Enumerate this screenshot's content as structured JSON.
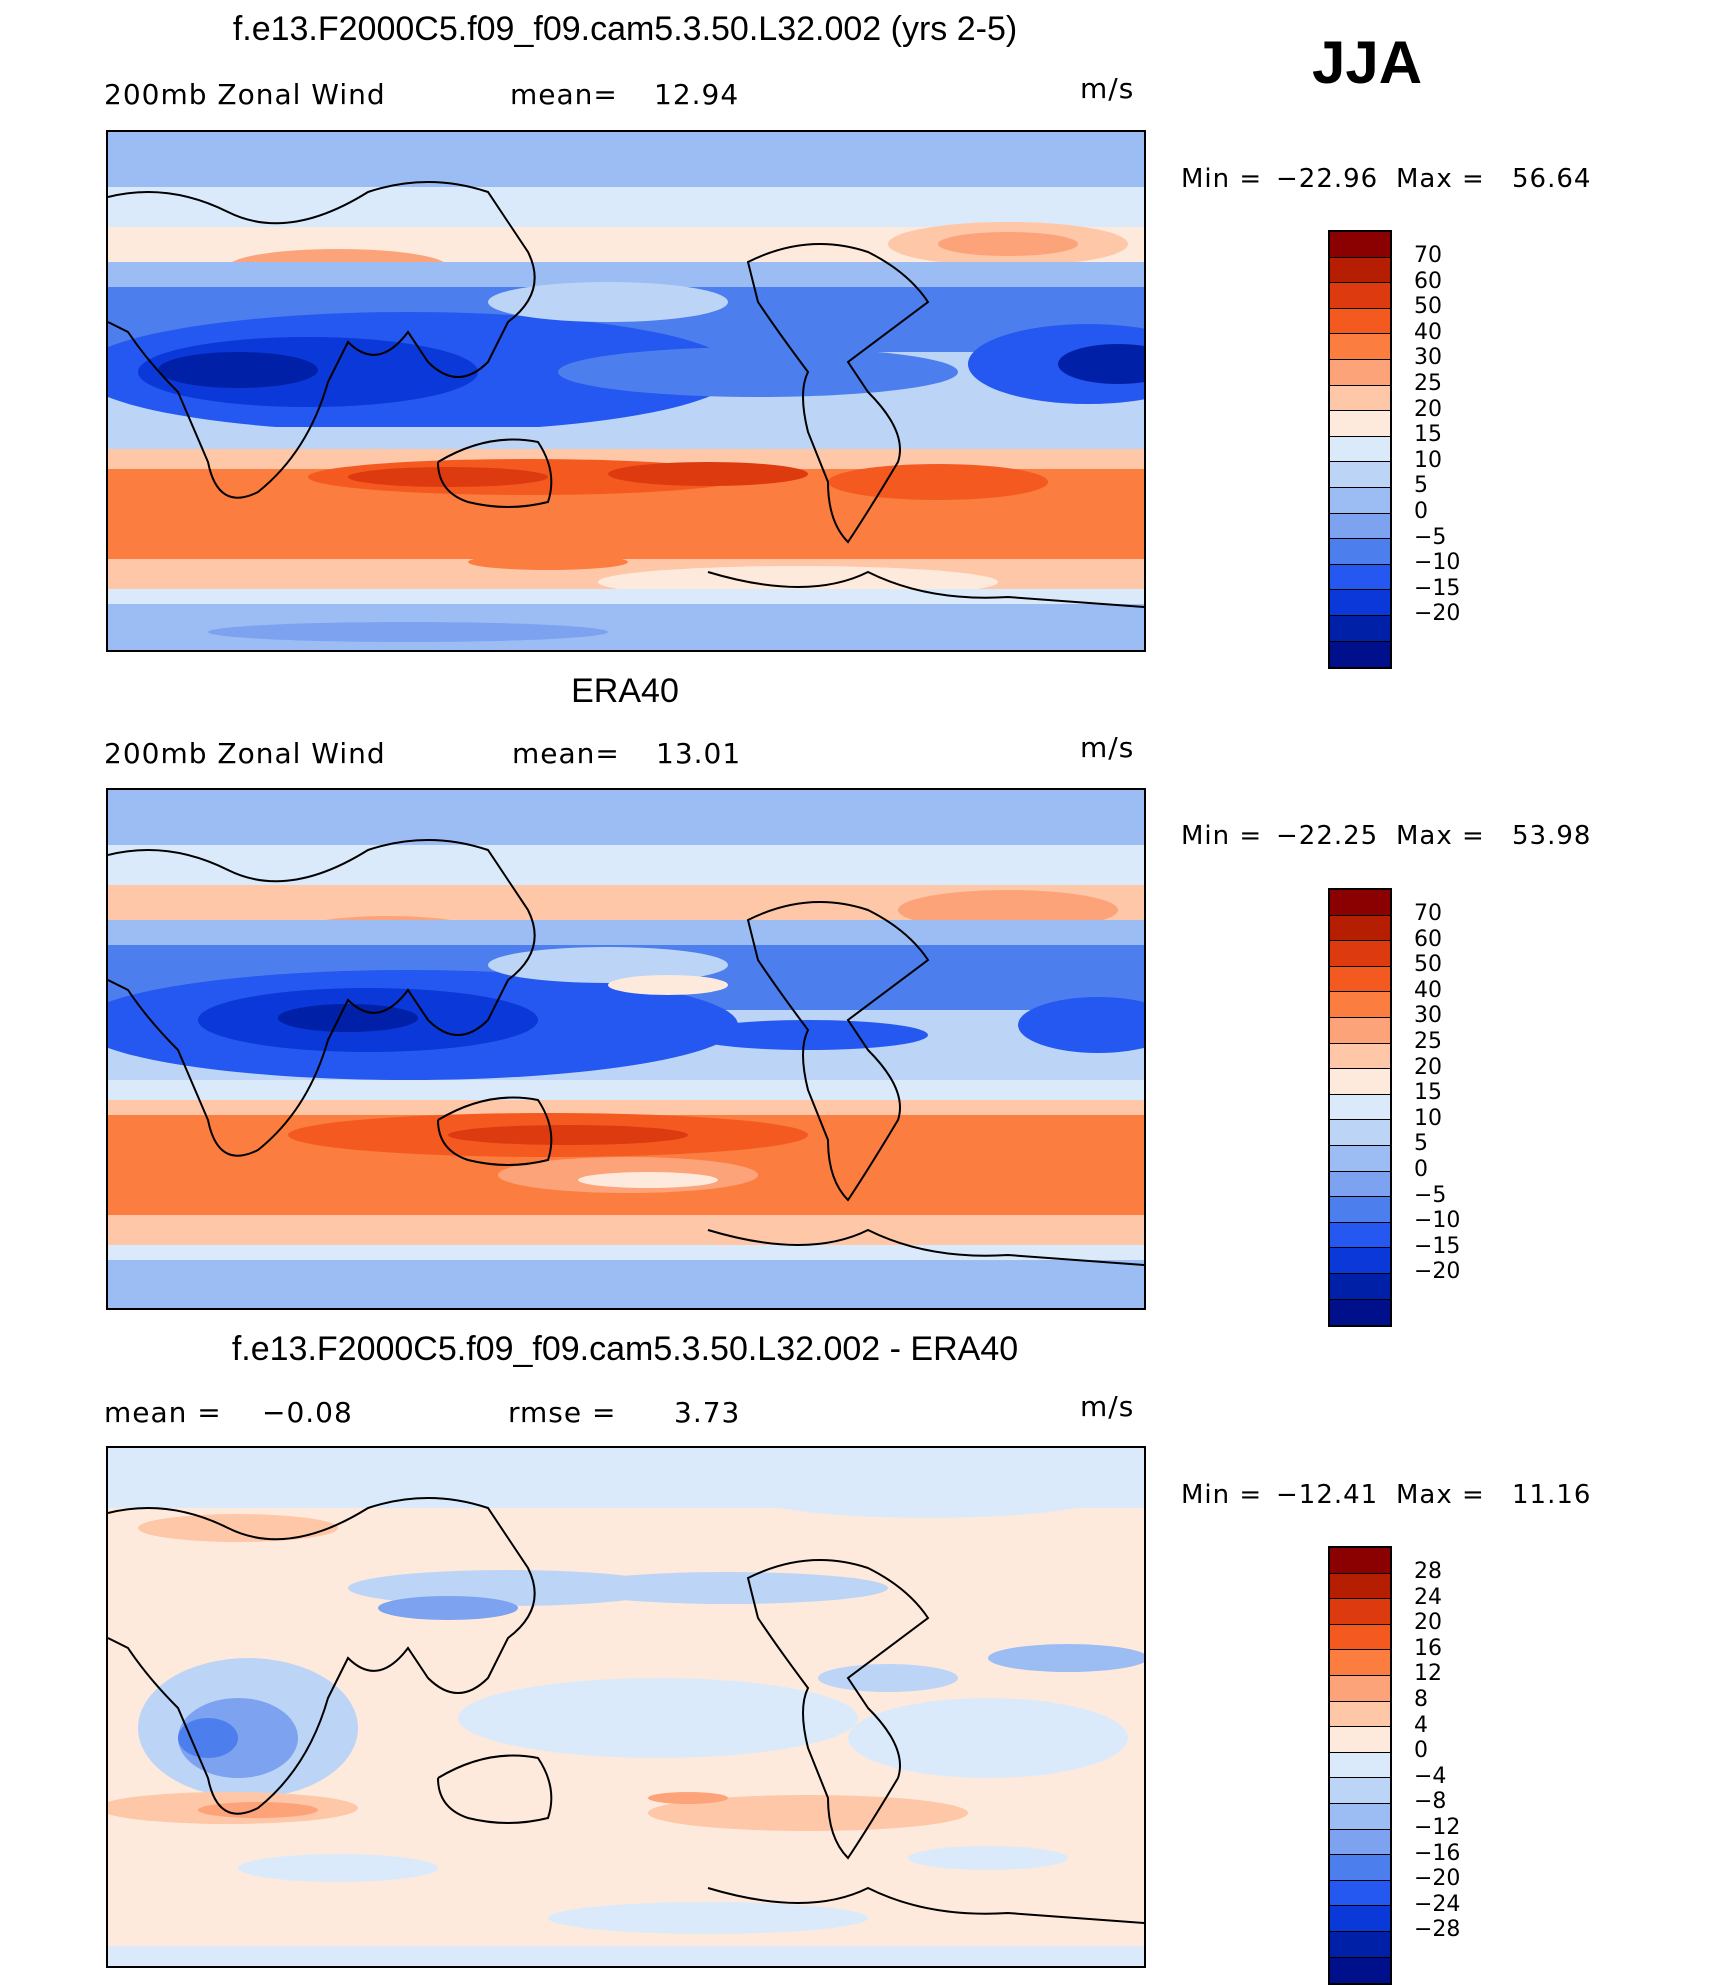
{
  "season": "JJA",
  "panels": [
    {
      "title": "f.e13.F2000C5.f09_f09.cam5.3.50.L32.002 (yrs 2-5)",
      "left_label": "200mb Zonal Wind",
      "stat_label": "mean=",
      "stat_value": "12.94",
      "units": "m/s",
      "min_label": "Min =",
      "min_value": "−22.96",
      "max_label": "Max =",
      "max_value": "56.64",
      "colorbar": {
        "colors": [
          "#8b0000",
          "#b51e00",
          "#dd3a10",
          "#f45a20",
          "#fb7d40",
          "#fca37a",
          "#fdc7a8",
          "#feeadc",
          "#dbeafb",
          "#bcd5f7",
          "#9cbdf3",
          "#7ca2f0",
          "#4d7eee",
          "#2458f0",
          "#0b38d8",
          "#0020a8",
          "#00108a"
        ],
        "labels": [
          "70",
          "60",
          "50",
          "40",
          "30",
          "25",
          "20",
          "15",
          "10",
          "5",
          "0",
          "−5",
          "−10",
          "−15",
          "−20"
        ]
      }
    },
    {
      "title": "ERA40",
      "left_label": "200mb Zonal Wind",
      "stat_label": "mean=",
      "stat_value": "13.01",
      "units": "m/s",
      "min_label": "Min =",
      "min_value": "−22.25",
      "max_label": "Max =",
      "max_value": "53.98",
      "colorbar": {
        "colors": [
          "#8b0000",
          "#b51e00",
          "#dd3a10",
          "#f45a20",
          "#fb7d40",
          "#fca37a",
          "#fdc7a8",
          "#feeadc",
          "#dbeafb",
          "#bcd5f7",
          "#9cbdf3",
          "#7ca2f0",
          "#4d7eee",
          "#2458f0",
          "#0b38d8",
          "#0020a8",
          "#00108a"
        ],
        "labels": [
          "70",
          "60",
          "50",
          "40",
          "30",
          "25",
          "20",
          "15",
          "10",
          "5",
          "0",
          "−5",
          "−10",
          "−15",
          "−20"
        ]
      }
    },
    {
      "title": "f.e13.F2000C5.f09_f09.cam5.3.50.L32.002 - ERA40",
      "left_label": "mean =",
      "left_value": "−0.08",
      "stat_label": "rmse =",
      "stat_value": "3.73",
      "units": "m/s",
      "min_label": "Min =",
      "min_value": "−12.41",
      "max_label": "Max =",
      "max_value": "11.16",
      "colorbar": {
        "colors": [
          "#8b0000",
          "#b51e00",
          "#dd3a10",
          "#f45a20",
          "#fb7d40",
          "#fca37a",
          "#fdc7a8",
          "#feeadc",
          "#dbeafb",
          "#bcd5f7",
          "#9cbdf3",
          "#7ca2f0",
          "#4d7eee",
          "#2458f0",
          "#0b38d8",
          "#0020a8",
          "#00108a"
        ],
        "labels": [
          "28",
          "24",
          "20",
          "16",
          "12",
          "8",
          "4",
          "0",
          "−4",
          "−8",
          "−12",
          "−16",
          "−20",
          "−24",
          "−28"
        ]
      }
    }
  ]
}
